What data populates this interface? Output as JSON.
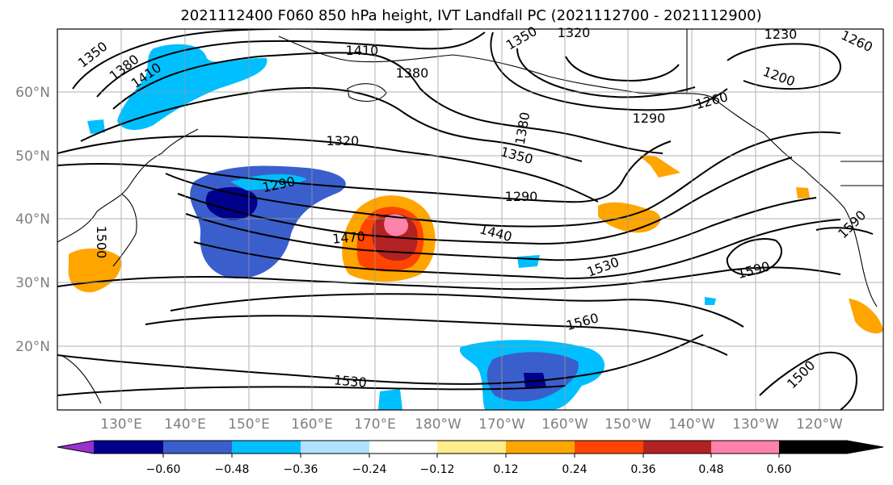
{
  "title": "2021112400 F060 850 hPa height, IVT Landfall PC (2021112700 - 2021112900)",
  "map": {
    "lat_labels": [
      "60°N",
      "50°N",
      "40°N",
      "30°N",
      "20°N"
    ],
    "lon_labels": [
      "130°E",
      "140°E",
      "150°E",
      "160°E",
      "170°E",
      "180°W",
      "170°W",
      "160°W",
      "150°W",
      "140°W",
      "130°W",
      "120°W"
    ],
    "contour_labels": [
      "1350",
      "1380",
      "1410",
      "1410",
      "1380",
      "1350",
      "1320",
      "1230",
      "1260",
      "1200",
      "1260",
      "1290",
      "1290",
      "1320",
      "1350",
      "1380",
      "1290",
      "1470",
      "1440",
      "1530",
      "1590",
      "1560",
      "1530",
      "1500",
      "1590",
      "1500"
    ]
  },
  "colorbar": {
    "tick_labels": [
      "−0.60",
      "−0.48",
      "−0.36",
      "−0.24",
      "−0.12",
      "0.12",
      "0.24",
      "0.36",
      "0.48",
      "0.60"
    ],
    "colors": [
      "#9932cc",
      "#00008b",
      "#3a5fcd",
      "#00bfff",
      "#b0e2ff",
      "#ffffff",
      "#ffec8b",
      "#ffa500",
      "#ff4500",
      "#b22222",
      "#ff82ab"
    ]
  }
}
